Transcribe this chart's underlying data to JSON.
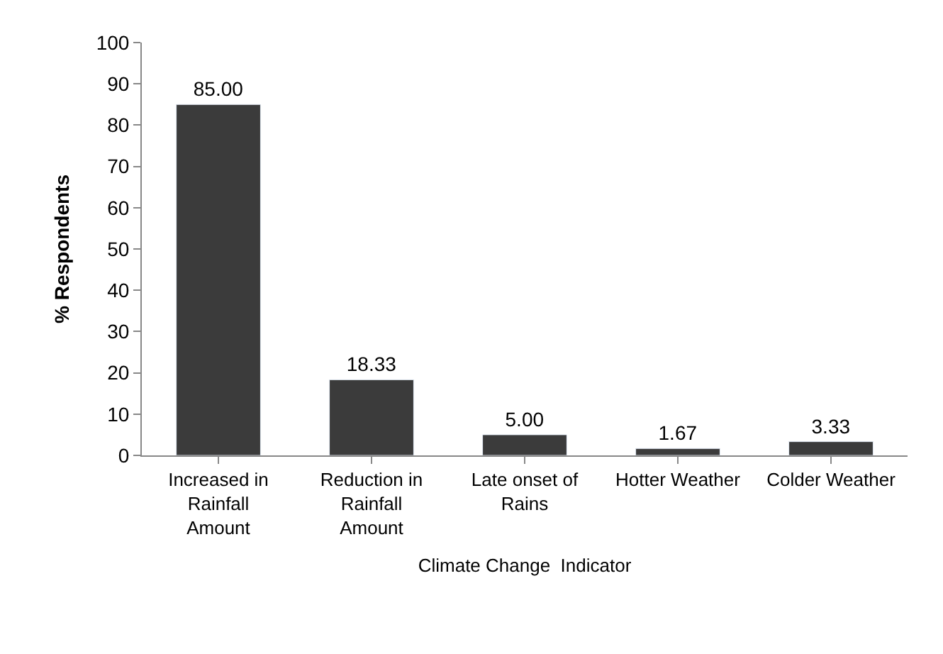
{
  "chart_data": {
    "type": "bar",
    "xlabel": "Climate Change  Indicator",
    "ylabel": "% Respondents",
    "categories": [
      "Increased in Rainfall Amount",
      "Reduction in Rainfall Amount",
      "Late onset of Rains",
      "Hotter Weather",
      "Colder Weather"
    ],
    "values": [
      85.0,
      18.33,
      5.0,
      1.67,
      3.33
    ],
    "value_labels": [
      "85.00",
      "18.33",
      "5.00",
      "1.67",
      "3.33"
    ],
    "color": "#3b3b3b",
    "ylim": [
      0,
      100
    ],
    "yticks": [
      0,
      10,
      20,
      30,
      40,
      50,
      60,
      70,
      80,
      90,
      100
    ]
  }
}
